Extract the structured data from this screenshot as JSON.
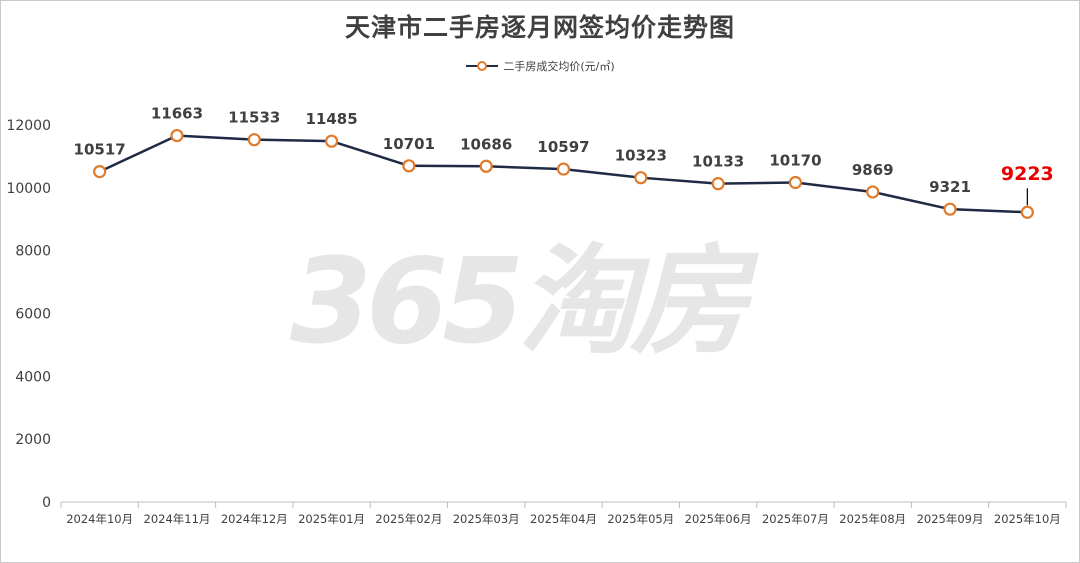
{
  "title": "天津市二手房逐月网签均价走势图",
  "watermark": "365淘房",
  "colors": {
    "line": "#1f2a44",
    "marker_stroke": "#e07b2c",
    "marker_fill": "#ffffff",
    "axis": "#bfbfbf",
    "label": "#404040",
    "highlight": "#e60000"
  },
  "chart_data": {
    "type": "line",
    "title": "天津市二手房逐月网签均价走势图",
    "categories": [
      "2024年10月",
      "2024年11月",
      "2024年12月",
      "2025年01月",
      "2025年02月",
      "2025年03月",
      "2025年04月",
      "2025年05月",
      "2025年06月",
      "2025年07月",
      "2025年08月",
      "2025年09月",
      "2025年10月"
    ],
    "series": [
      {
        "name": "二手房成交均价(元/㎡)",
        "values": [
          10517,
          11663,
          11533,
          11485,
          10701,
          10686,
          10597,
          10323,
          10133,
          10170,
          9869,
          9321,
          9223
        ]
      }
    ],
    "data_labels": [
      "10517",
      "11663",
      "11533",
      "11485",
      "10701",
      "10686",
      "10597",
      "10323",
      "10133",
      "10170",
      "9869",
      "9321",
      "9223"
    ],
    "highlight_index": 12,
    "ylim": [
      0,
      12000
    ],
    "yticks": [
      0,
      2000,
      4000,
      6000,
      8000,
      10000,
      12000
    ],
    "ytick_labels": [
      "0",
      "2000",
      "4000",
      "6000",
      "8000",
      "10000",
      "12000"
    ],
    "grid": false,
    "legend": "top-center",
    "xlabel": "",
    "ylabel": ""
  }
}
